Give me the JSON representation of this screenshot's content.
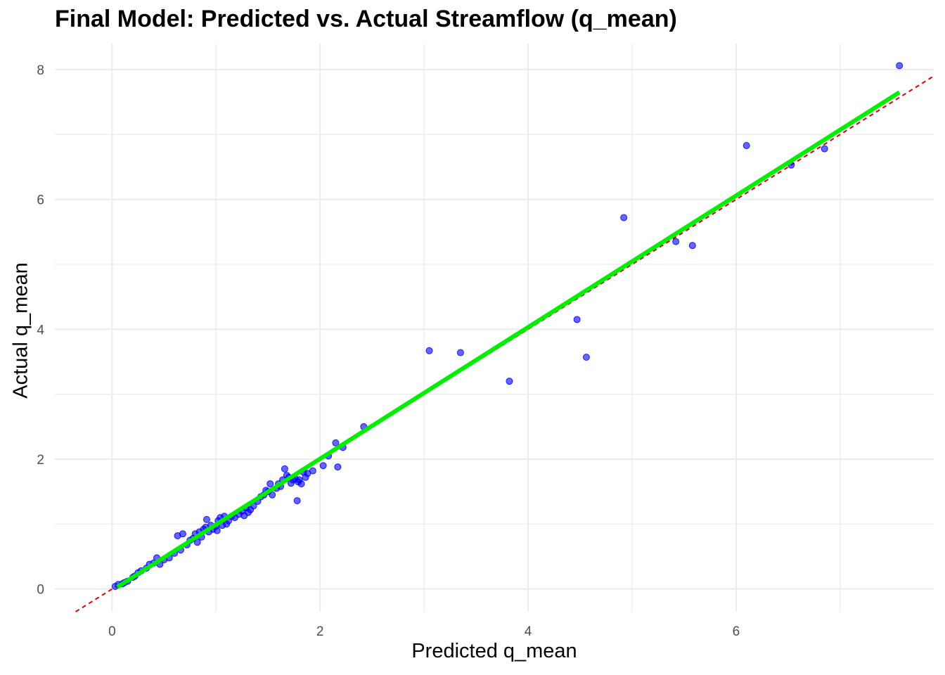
{
  "chart_data": {
    "type": "scatter",
    "title": "Final Model: Predicted vs. Actual Streamflow (q_mean)",
    "xlabel": "Predicted q_mean",
    "ylabel": "Actual q_mean",
    "xlim": [
      -0.55,
      7.9
    ],
    "ylim": [
      -0.35,
      8.4
    ],
    "x_ticks": [
      0,
      2,
      4,
      6
    ],
    "y_ticks": [
      0,
      2,
      4,
      6,
      8
    ],
    "grid": true,
    "legend": "none",
    "colors": {
      "points": "#0000ff",
      "fit_line": "#00ee00",
      "identity_line": "#dd0000",
      "grid": "#ebebeb"
    },
    "series": [
      {
        "type": "scatter",
        "points": [
          [
            0.03,
            0.04
          ],
          [
            0.06,
            0.07
          ],
          [
            0.1,
            0.08
          ],
          [
            0.12,
            0.1
          ],
          [
            0.15,
            0.12
          ],
          [
            0.2,
            0.18
          ],
          [
            0.22,
            0.2
          ],
          [
            0.25,
            0.25
          ],
          [
            0.28,
            0.28
          ],
          [
            0.33,
            0.32
          ],
          [
            0.36,
            0.38
          ],
          [
            0.4,
            0.4
          ],
          [
            0.43,
            0.48
          ],
          [
            0.46,
            0.38
          ],
          [
            0.5,
            0.45
          ],
          [
            0.55,
            0.48
          ],
          [
            0.6,
            0.55
          ],
          [
            0.63,
            0.82
          ],
          [
            0.66,
            0.6
          ],
          [
            0.68,
            0.85
          ],
          [
            0.72,
            0.68
          ],
          [
            0.75,
            0.75
          ],
          [
            0.78,
            0.78
          ],
          [
            0.8,
            0.85
          ],
          [
            0.82,
            0.72
          ],
          [
            0.84,
            0.88
          ],
          [
            0.86,
            0.8
          ],
          [
            0.88,
            0.92
          ],
          [
            0.9,
            0.95
          ],
          [
            0.91,
            1.07
          ],
          [
            0.93,
            0.88
          ],
          [
            0.95,
            0.98
          ],
          [
            0.97,
            0.92
          ],
          [
            1.0,
            0.97
          ],
          [
            1.01,
            0.9
          ],
          [
            1.02,
            1.05
          ],
          [
            1.04,
            1.1
          ],
          [
            1.06,
            0.98
          ],
          [
            1.08,
            1.12
          ],
          [
            1.1,
            1.0
          ],
          [
            1.12,
            1.05
          ],
          [
            1.15,
            1.12
          ],
          [
            1.18,
            1.1
          ],
          [
            1.22,
            1.15
          ],
          [
            1.25,
            1.2
          ],
          [
            1.27,
            1.13
          ],
          [
            1.29,
            1.25
          ],
          [
            1.31,
            1.18
          ],
          [
            1.33,
            1.22
          ],
          [
            1.36,
            1.28
          ],
          [
            1.4,
            1.35
          ],
          [
            1.43,
            1.42
          ],
          [
            1.46,
            1.45
          ],
          [
            1.48,
            1.52
          ],
          [
            1.5,
            1.5
          ],
          [
            1.52,
            1.62
          ],
          [
            1.54,
            1.45
          ],
          [
            1.58,
            1.55
          ],
          [
            1.6,
            1.62
          ],
          [
            1.62,
            1.58
          ],
          [
            1.64,
            1.68
          ],
          [
            1.66,
            1.85
          ],
          [
            1.68,
            1.75
          ],
          [
            1.7,
            1.72
          ],
          [
            1.72,
            1.63
          ],
          [
            1.74,
            1.68
          ],
          [
            1.76,
            1.7
          ],
          [
            1.78,
            1.36
          ],
          [
            1.79,
            1.65
          ],
          [
            1.8,
            1.68
          ],
          [
            1.82,
            1.62
          ],
          [
            1.84,
            1.8
          ],
          [
            1.86,
            1.72
          ],
          [
            1.88,
            1.78
          ],
          [
            1.93,
            1.82
          ],
          [
            2.03,
            1.9
          ],
          [
            2.08,
            2.05
          ],
          [
            2.15,
            2.25
          ],
          [
            2.17,
            1.88
          ],
          [
            2.22,
            2.18
          ],
          [
            2.42,
            2.5
          ],
          [
            3.05,
            3.67
          ],
          [
            3.35,
            3.64
          ],
          [
            3.82,
            3.2
          ],
          [
            4.47,
            4.15
          ],
          [
            4.56,
            3.57
          ],
          [
            4.92,
            5.72
          ],
          [
            5.42,
            5.35
          ],
          [
            5.58,
            5.29
          ],
          [
            6.1,
            6.83
          ],
          [
            6.53,
            6.53
          ],
          [
            6.85,
            6.78
          ],
          [
            7.57,
            8.06
          ]
        ]
      },
      {
        "type": "fit_line",
        "x": [
          0.05,
          7.57
        ],
        "y": [
          0.03,
          7.65
        ]
      },
      {
        "type": "identity_line",
        "slope": 1,
        "intercept": 0
      }
    ]
  }
}
